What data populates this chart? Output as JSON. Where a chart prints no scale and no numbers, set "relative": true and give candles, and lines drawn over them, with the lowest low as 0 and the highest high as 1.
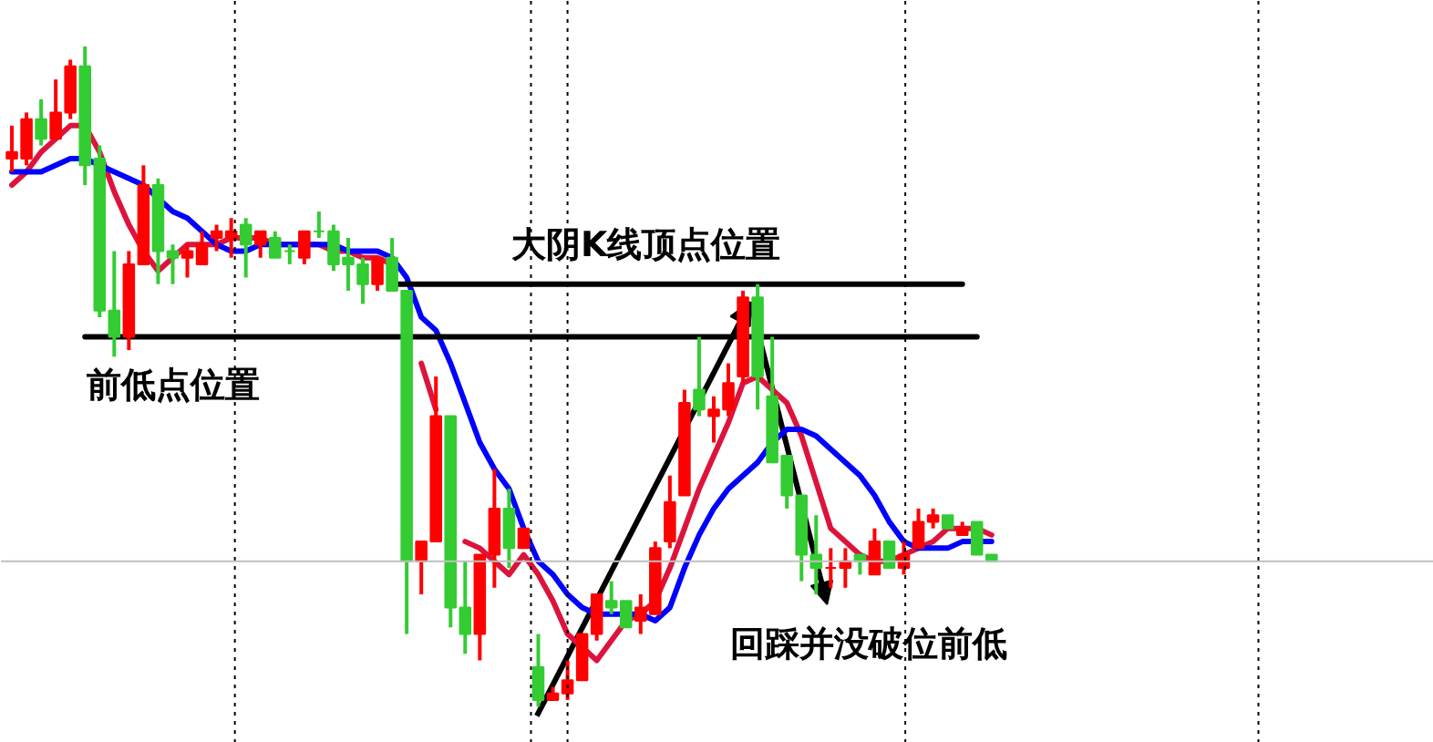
{
  "chart_data": {
    "type": "candlestick",
    "relative": true,
    "tick_labels": false,
    "categories": [
      null,
      null,
      null,
      null,
      null,
      null,
      null,
      null,
      null,
      null,
      null,
      null,
      null,
      null,
      null,
      null,
      null,
      null,
      null,
      null,
      null,
      null,
      null,
      null,
      null,
      null,
      null,
      null,
      null,
      null,
      null,
      null,
      null,
      null,
      null,
      null,
      null,
      null,
      null,
      null,
      null,
      null,
      null,
      null,
      null,
      null,
      null,
      null,
      null,
      null,
      null,
      null,
      null,
      null,
      null,
      null,
      null,
      null,
      null,
      null,
      null,
      null,
      null,
      null,
      null,
      null,
      null,
      null,
      null,
      null,
      null,
      null,
      null,
      null,
      null,
      null,
      null,
      null,
      null,
      null,
      null,
      null,
      null,
      null,
      null,
      null,
      null,
      null,
      null,
      null,
      null,
      null,
      null,
      null,
      null,
      null,
      null,
      null
    ],
    "ohlc": [
      [
        0.83,
        0.88,
        0.81,
        0.84
      ],
      [
        0.83,
        0.9,
        0.82,
        0.89
      ],
      [
        0.89,
        0.92,
        0.85,
        0.86
      ],
      [
        0.86,
        0.95,
        0.86,
        0.9
      ],
      [
        0.9,
        0.98,
        0.89,
        0.97
      ],
      [
        0.97,
        1,
        0.79,
        0.82
      ],
      [
        0.83,
        0.85,
        0.59,
        0.6
      ],
      [
        0.6,
        0.69,
        0.53,
        0.56
      ],
      [
        0.56,
        0.69,
        0.54,
        0.67
      ],
      [
        0.67,
        0.82,
        0.67,
        0.79
      ],
      [
        0.79,
        0.8,
        0.64,
        0.69
      ],
      [
        0.69,
        0.7,
        0.64,
        0.68
      ],
      [
        0.68,
        0.7,
        0.65,
        0.69
      ],
      [
        0.67,
        0.72,
        0.67,
        0.7
      ],
      [
        0.71,
        0.73,
        0.69,
        0.72
      ],
      [
        0.71,
        0.74,
        0.68,
        0.72
      ],
      [
        0.73,
        0.74,
        0.65,
        0.7
      ],
      [
        0.7,
        0.72,
        0.68,
        0.72
      ],
      [
        0.71,
        0.72,
        0.68,
        0.68
      ],
      [
        0.69,
        0.7,
        0.67,
        0.69
      ],
      [
        0.68,
        0.72,
        0.67,
        0.72
      ],
      [
        0.72,
        0.75,
        0.71,
        0.72
      ],
      [
        0.72,
        0.73,
        0.66,
        0.67
      ],
      [
        0.68,
        0.71,
        0.63,
        0.67
      ],
      [
        0.67,
        0.68,
        0.61,
        0.64
      ],
      [
        0.64,
        0.68,
        0.63,
        0.68
      ],
      [
        0.68,
        0.71,
        0.63,
        0.63
      ],
      [
        0.63,
        0.63,
        0.11,
        0.22
      ],
      [
        0.22,
        0.25,
        0.17,
        0.25
      ],
      [
        0.25,
        0.5,
        0.25,
        0.44
      ],
      [
        0.44,
        0.44,
        0.12,
        0.15
      ],
      [
        0.15,
        0.22,
        0.08,
        0.11
      ],
      [
        0.11,
        0.23,
        0.07,
        0.23
      ],
      [
        0.23,
        0.36,
        0.18,
        0.3
      ],
      [
        0.3,
        0.33,
        0.21,
        0.24
      ],
      [
        0.24,
        0.27,
        0.24,
        0.27
      ],
      [
        0.06,
        0.11,
        0,
        0.01
      ],
      [
        0.01,
        0.03,
        0.01,
        0.02
      ],
      [
        0.02,
        0.07,
        0.01,
        0.04
      ],
      [
        0.04,
        0.11,
        0.04,
        0.11
      ],
      [
        0.11,
        0.17,
        0.1,
        0.17
      ],
      [
        0.16,
        0.19,
        0.14,
        0.15
      ],
      [
        0.16,
        0.16,
        0.12,
        0.12
      ],
      [
        0.13,
        0.17,
        0.11,
        0.15
      ],
      [
        0.14,
        0.25,
        0.14,
        0.24
      ],
      [
        0.25,
        0.35,
        0.24,
        0.31
      ],
      [
        0.32,
        0.48,
        0.32,
        0.46
      ],
      [
        0.48,
        0.56,
        0.44,
        0.45
      ],
      [
        0.44,
        0.47,
        0.4,
        0.45
      ],
      [
        0.45,
        0.52,
        0.44,
        0.49
      ],
      [
        0.5,
        0.63,
        0.49,
        0.62
      ],
      [
        0.62,
        0.64,
        0.45,
        0.5
      ],
      [
        0.47,
        0.56,
        0.37,
        0.37
      ],
      [
        0.38,
        0.38,
        0.3,
        0.32
      ],
      [
        0.32,
        0.32,
        0.19,
        0.23
      ],
      [
        0.23,
        0.29,
        0.17,
        0.21
      ],
      [
        0.21,
        0.24,
        0.18,
        0.21
      ],
      [
        0.21,
        0.24,
        0.18,
        0.22
      ],
      [
        0.23,
        0.23,
        0.2,
        0.22
      ],
      [
        0.2,
        0.27,
        0.2,
        0.25
      ],
      [
        0.25,
        0.25,
        0.21,
        0.21
      ],
      [
        0.21,
        0.25,
        0.2,
        0.23
      ],
      [
        0.24,
        0.3,
        0.24,
        0.28
      ],
      [
        0.28,
        0.3,
        0.27,
        0.29
      ],
      [
        0.29,
        0.29,
        0.27,
        0.27
      ],
      [
        0.26,
        0.28,
        0.26,
        0.27
      ],
      [
        0.28,
        0.28,
        0.23,
        0.23
      ],
      [
        0.23,
        0.23,
        0.22,
        0.22
      ],
      null,
      null,
      null,
      null,
      null,
      null,
      null,
      null,
      null,
      null,
      null,
      null,
      null,
      null,
      null,
      null,
      null,
      null,
      null,
      null,
      null,
      null,
      null,
      null,
      null,
      null,
      null,
      null,
      null,
      null
    ],
    "colors": [
      "#ff0000",
      "#ff0000",
      "#33cc33",
      "#ff0000",
      "#ff0000",
      "#33cc33",
      "#33cc33",
      "#33cc33",
      "#ff0000",
      "#ff0000",
      "#33cc33",
      "#33cc33",
      "#ff0000",
      "#ff0000",
      "#ff0000",
      "#ff0000",
      "#33cc33",
      "#ff0000",
      "#33cc33",
      "#33cc33",
      "#ff0000",
      "#33cc33",
      "#33cc33",
      "#33cc33",
      "#33cc33",
      "#ff0000",
      "#33cc33",
      "#33cc33",
      "#ff0000",
      "#ff0000",
      "#33cc33",
      "#33cc33",
      "#ff0000",
      "#ff0000",
      "#33cc33",
      "#ff0000",
      "#33cc33",
      "#ff0000",
      "#ff0000",
      "#ff0000",
      "#ff0000",
      "#33cc33",
      "#33cc33",
      "#ff0000",
      "#ff0000",
      "#ff0000",
      "#ff0000",
      "#33cc33",
      "#ff0000",
      "#ff0000",
      "#ff0000",
      "#33cc33",
      "#33cc33",
      "#33cc33",
      "#33cc33",
      "#33cc33",
      "#ff0000",
      "#ff0000",
      "#33cc33",
      "#ff0000",
      "#33cc33",
      "#ff0000",
      "#ff0000",
      "#ff0000",
      "#33cc33",
      "#ff0000",
      "#33cc33",
      "#33cc33",
      null,
      null,
      null,
      null,
      null,
      null,
      null,
      null,
      null,
      null,
      null,
      null,
      null,
      null,
      null,
      null,
      null,
      null,
      null,
      null,
      null,
      null,
      null,
      null,
      null,
      null,
      null,
      null,
      null,
      null
    ],
    "series": [
      {
        "type": "line",
        "color": "#dc143c",
        "values": [
          0.79,
          0.81,
          0.84,
          0.86,
          0.88,
          0.88,
          0.84,
          0.78,
          0.73,
          0.69,
          0.66,
          0.68,
          0.7,
          0.7,
          0.7,
          0.71,
          0.71,
          0.71,
          0.7,
          0.7,
          0.7,
          0.7,
          0.69,
          0.69,
          0.68,
          0.68,
          0.67,
          null,
          0.52,
          0.45,
          null,
          0.25,
          0.24,
          0.22,
          0.2,
          0.23,
          0.2,
          0.16,
          0.11,
          0.09,
          0.07,
          0.1,
          0.13,
          0.14,
          0.16,
          0.21,
          0.27,
          0.33,
          0.38,
          0.43,
          0.49,
          0.5,
          0.48,
          0.46,
          0.41,
          0.34,
          0.27,
          0.25,
          0.23,
          0.22,
          0.22,
          0.23,
          0.24,
          0.25,
          0.27,
          0.27,
          0.27,
          0.26,
          null,
          null,
          null,
          null,
          null,
          null,
          null,
          null,
          null,
          null,
          null,
          null,
          null,
          null,
          null,
          null,
          null,
          null,
          null,
          null,
          null,
          null,
          null,
          null,
          null,
          null,
          null,
          null,
          null,
          null
        ]
      },
      {
        "type": "line",
        "color": "#0000ff",
        "values": [
          0.81,
          0.81,
          0.81,
          0.82,
          0.83,
          0.83,
          0.82,
          0.81,
          0.8,
          0.79,
          0.77,
          0.75,
          0.74,
          0.72,
          0.7,
          0.69,
          0.69,
          0.7,
          0.7,
          0.7,
          0.7,
          0.7,
          0.7,
          0.69,
          0.69,
          0.69,
          0.68,
          0.65,
          0.59,
          0.57,
          0.52,
          0.46,
          0.4,
          0.36,
          0.33,
          0.27,
          0.22,
          0.2,
          0.17,
          0.15,
          0.14,
          0.14,
          0.14,
          0.14,
          0.13,
          0.15,
          0.21,
          0.26,
          0.3,
          0.33,
          0.35,
          0.37,
          0.4,
          0.42,
          0.42,
          0.41,
          0.39,
          0.37,
          0.35,
          0.32,
          0.28,
          0.25,
          0.24,
          0.24,
          0.24,
          0.25,
          0.25,
          0.25,
          null,
          null,
          null,
          null,
          null,
          null,
          null,
          null,
          null,
          null,
          null,
          null,
          null,
          null,
          null,
          null,
          null,
          null,
          null,
          null,
          null,
          null,
          null,
          null,
          null,
          null,
          null,
          null,
          null,
          null
        ]
      },
      {
        "type": "line",
        "color": "#000000",
        "values": [
          null,
          null,
          null,
          null,
          null,
          0.56,
          0.56,
          0.56,
          0.56,
          0.56,
          0.56,
          0.56,
          0.56,
          0.56,
          0.56,
          0.56,
          0.56,
          0.56,
          0.56,
          0.56,
          0.56,
          0.56,
          0.56,
          0.56,
          0.56,
          0.56,
          0.56,
          0.56,
          0.56,
          0.56,
          0.56,
          0.56,
          0.56,
          0.56,
          0.56,
          0.56,
          0.56,
          0.56,
          0.56,
          0.56,
          0.56,
          0.56,
          0.56,
          0.56,
          0.56,
          0.56,
          0.56,
          0.56,
          0.56,
          0.56,
          0.56,
          0.56,
          0.56,
          0.56,
          0.56,
          0.56,
          0.56,
          0.56,
          0.56,
          0.56,
          0.56,
          0.56,
          0.56,
          0.56,
          0.56,
          0.56,
          0.56,
          null,
          null,
          null,
          null,
          null,
          null,
          null,
          null,
          null,
          null,
          null,
          null,
          null,
          null,
          null,
          null,
          null,
          null,
          null,
          null,
          null,
          null,
          null,
          null,
          null,
          null,
          null,
          null,
          null,
          null,
          null
        ]
      },
      {
        "type": "line",
        "color": "#000000",
        "values": [
          null,
          null,
          null,
          null,
          null,
          null,
          null,
          null,
          null,
          null,
          null,
          null,
          null,
          null,
          null,
          null,
          null,
          null,
          null,
          null,
          null,
          null,
          null,
          null,
          null,
          null,
          0.64,
          0.64,
          0.64,
          0.64,
          0.64,
          0.64,
          0.64,
          0.64,
          0.64,
          0.64,
          0.64,
          0.64,
          0.64,
          0.64,
          0.64,
          0.64,
          0.64,
          0.64,
          0.64,
          0.64,
          0.64,
          0.64,
          0.64,
          0.64,
          0.64,
          0.64,
          0.64,
          0.64,
          0.64,
          0.64,
          0.64,
          0.64,
          0.64,
          0.64,
          0.64,
          0.64,
          0.64,
          0.64,
          0.64,
          0.64,
          null,
          null,
          null,
          null,
          null,
          null,
          null,
          null,
          null,
          null,
          null,
          null,
          null,
          null,
          null,
          null,
          null,
          null,
          null,
          null,
          null,
          null,
          null,
          null,
          null,
          null,
          null,
          null,
          null,
          null,
          null,
          null
        ]
      }
    ],
    "ref_lines": [
      {
        "axis": "y",
        "value": 0.22,
        "color": "#c0c0c0",
        "line_style": "solid"
      }
    ],
    "annotations": [
      "大阴K线顶点位置",
      "前低点位置",
      "回踩并没破位前低"
    ]
  }
}
